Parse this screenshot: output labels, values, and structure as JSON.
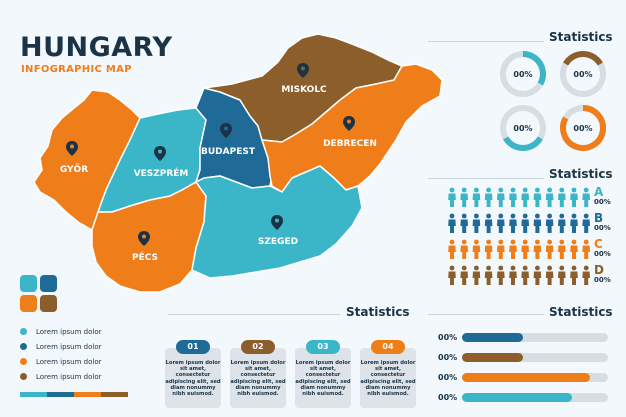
{
  "header": {
    "title": "HUNGARY",
    "subtitle": "INFOGRAPHIC MAP"
  },
  "colors": {
    "teal": "#3bb5c8",
    "blue": "#1f6a96",
    "orange": "#ef7d1a",
    "brown": "#8b5e2b",
    "navy": "#1b3346"
  },
  "map": {
    "cities": [
      {
        "name": "MISKOLC",
        "icon": "map-pin-icon"
      },
      {
        "name": "GYŐR",
        "icon": "map-pin-icon"
      },
      {
        "name": "VESZPRÉM",
        "icon": "map-pin-icon"
      },
      {
        "name": "BUDAPEST",
        "icon": "map-pin-icon"
      },
      {
        "name": "DEBRECEN",
        "icon": "map-pin-icon"
      },
      {
        "name": "SZEGED",
        "icon": "map-pin-icon"
      },
      {
        "name": "PÉCS",
        "icon": "map-pin-icon"
      }
    ]
  },
  "donut_stats": {
    "title": "Statistics",
    "items": [
      {
        "label": "00%",
        "color": "#3bb5c8"
      },
      {
        "label": "00%",
        "color": "#8b5e2b"
      },
      {
        "label": "00%",
        "color": "#3bb5c8"
      },
      {
        "label": "00%",
        "color": "#ef7d1a"
      }
    ]
  },
  "people_stats": {
    "title": "Statistics",
    "rows": [
      {
        "letter": "A",
        "pct": "00%",
        "color": "#3bb5c8"
      },
      {
        "letter": "B",
        "pct": "00%",
        "color": "#1f6a96"
      },
      {
        "letter": "C",
        "pct": "00%",
        "color": "#ef7d1a"
      },
      {
        "letter": "D",
        "pct": "00%",
        "color": "#8b5e2b"
      }
    ]
  },
  "legend": {
    "items": [
      {
        "label": "Lorem ipsum dolor",
        "color": "#3bb5c8"
      },
      {
        "label": "Lorem ipsum dolor",
        "color": "#1f6a96"
      },
      {
        "label": "Lorem ipsum dolor",
        "color": "#ef7d1a"
      },
      {
        "label": "Lorem ipsum dolor",
        "color": "#8b5e2b"
      }
    ]
  },
  "card_stats": {
    "title": "Statistics",
    "cards": [
      {
        "num": "01",
        "text": "Lorem ipsum dolor sit amet, consectetur adipiscing elit, sed diam nonummy nibh euismod.",
        "color": "#1f6a96"
      },
      {
        "num": "02",
        "text": "Lorem ipsum dolor sit amet, consectetur adipiscing elit, sed diam nonummy nibh euismod.",
        "color": "#8b5e2b"
      },
      {
        "num": "03",
        "text": "Lorem ipsum dolor sit amet, consectetur adipiscing elit, sed diam nonummy nibh euismod.",
        "color": "#3bb5c8"
      },
      {
        "num": "04",
        "text": "Lorem ipsum dolor sit amet, consectetur adipiscing elit, sed diam nonummy nibh euismod.",
        "color": "#ef7d1a"
      }
    ]
  },
  "bar_stats": {
    "title": "Statistics",
    "bars": [
      {
        "pct": "00%",
        "color": "#1f6a96",
        "fill": 0.42
      },
      {
        "pct": "00%",
        "color": "#8b5e2b",
        "fill": 0.42
      },
      {
        "pct": "00%",
        "color": "#ef7d1a",
        "fill": 0.88
      },
      {
        "pct": "00%",
        "color": "#3bb5c8",
        "fill": 0.75
      }
    ]
  }
}
